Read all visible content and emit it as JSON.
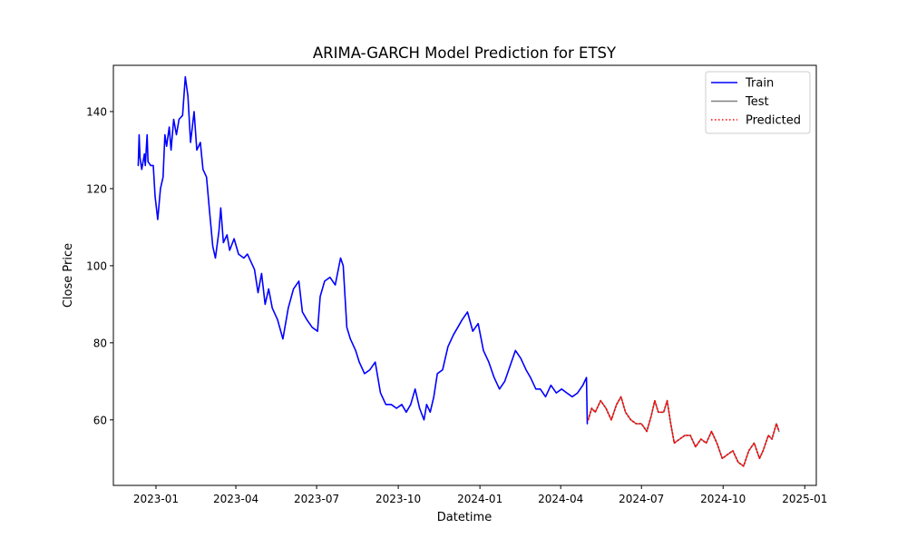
{
  "chart_data": {
    "type": "line",
    "title": "ARIMA-GARCH Model Prediction for ETSY",
    "xlabel": "Datetime",
    "ylabel": "Close Price",
    "x_ticks": [
      "2023-01",
      "2023-04",
      "2023-07",
      "2023-10",
      "2024-01",
      "2024-04",
      "2024-07",
      "2024-10",
      "2025-01"
    ],
    "y_ticks": [
      60,
      80,
      100,
      120,
      140
    ],
    "xlim": [
      "2022-11-14",
      "2025-01-14"
    ],
    "ylim": [
      43,
      152
    ],
    "grid": false,
    "legend_position": "top-right",
    "series": [
      {
        "name": "Train",
        "color": "#0000ff",
        "style": "solid",
        "points": [
          [
            "2022-12-12",
            126
          ],
          [
            "2022-12-13",
            134
          ],
          [
            "2022-12-14",
            128
          ],
          [
            "2022-12-16",
            125
          ],
          [
            "2022-12-19",
            129
          ],
          [
            "2022-12-20",
            126
          ],
          [
            "2022-12-22",
            134
          ],
          [
            "2022-12-23",
            127
          ],
          [
            "2022-12-26",
            126
          ],
          [
            "2022-12-29",
            126
          ],
          [
            "2022-12-31",
            118
          ],
          [
            "2023-01-03",
            112
          ],
          [
            "2023-01-06",
            120
          ],
          [
            "2023-01-09",
            123
          ],
          [
            "2023-01-11",
            134
          ],
          [
            "2023-01-13",
            131
          ],
          [
            "2023-01-16",
            136
          ],
          [
            "2023-01-18",
            130
          ],
          [
            "2023-01-21",
            138
          ],
          [
            "2023-01-24",
            134
          ],
          [
            "2023-01-27",
            138
          ],
          [
            "2023-01-31",
            139
          ],
          [
            "2023-02-03",
            149
          ],
          [
            "2023-02-06",
            144
          ],
          [
            "2023-02-09",
            132
          ],
          [
            "2023-02-13",
            140
          ],
          [
            "2023-02-16",
            130
          ],
          [
            "2023-02-20",
            132
          ],
          [
            "2023-02-23",
            125
          ],
          [
            "2023-02-27",
            123
          ],
          [
            "2023-03-02",
            115
          ],
          [
            "2023-03-06",
            105
          ],
          [
            "2023-03-09",
            102
          ],
          [
            "2023-03-13",
            109
          ],
          [
            "2023-03-15",
            115
          ],
          [
            "2023-03-18",
            106
          ],
          [
            "2023-03-22",
            108
          ],
          [
            "2023-03-25",
            104
          ],
          [
            "2023-03-30",
            107
          ],
          [
            "2023-04-04",
            103
          ],
          [
            "2023-04-10",
            102
          ],
          [
            "2023-04-14",
            103
          ],
          [
            "2023-04-18",
            101
          ],
          [
            "2023-04-22",
            99
          ],
          [
            "2023-04-26",
            93
          ],
          [
            "2023-04-30",
            98
          ],
          [
            "2023-05-04",
            90
          ],
          [
            "2023-05-08",
            94
          ],
          [
            "2023-05-12",
            89
          ],
          [
            "2023-05-18",
            86
          ],
          [
            "2023-05-24",
            81
          ],
          [
            "2023-05-30",
            89
          ],
          [
            "2023-06-05",
            94
          ],
          [
            "2023-06-11",
            96
          ],
          [
            "2023-06-15",
            88
          ],
          [
            "2023-06-20",
            86
          ],
          [
            "2023-06-26",
            84
          ],
          [
            "2023-07-02",
            83
          ],
          [
            "2023-07-05",
            92
          ],
          [
            "2023-07-10",
            96
          ],
          [
            "2023-07-16",
            97
          ],
          [
            "2023-07-22",
            95
          ],
          [
            "2023-07-28",
            102
          ],
          [
            "2023-07-31",
            100
          ],
          [
            "2023-08-04",
            84
          ],
          [
            "2023-08-08",
            81
          ],
          [
            "2023-08-14",
            78
          ],
          [
            "2023-08-18",
            75
          ],
          [
            "2023-08-24",
            72
          ],
          [
            "2023-08-30",
            73
          ],
          [
            "2023-09-05",
            75
          ],
          [
            "2023-09-11",
            67
          ],
          [
            "2023-09-17",
            64
          ],
          [
            "2023-09-23",
            64
          ],
          [
            "2023-09-29",
            63
          ],
          [
            "2023-10-05",
            64
          ],
          [
            "2023-10-10",
            62
          ],
          [
            "2023-10-15",
            64
          ],
          [
            "2023-10-20",
            68
          ],
          [
            "2023-10-25",
            63
          ],
          [
            "2023-10-30",
            60
          ],
          [
            "2023-11-02",
            64
          ],
          [
            "2023-11-06",
            62
          ],
          [
            "2023-11-10",
            66
          ],
          [
            "2023-11-14",
            72
          ],
          [
            "2023-11-20",
            73
          ],
          [
            "2023-11-26",
            79
          ],
          [
            "2023-12-02",
            82
          ],
          [
            "2023-12-07",
            84
          ],
          [
            "2023-12-12",
            86
          ],
          [
            "2023-12-18",
            88
          ],
          [
            "2023-12-24",
            83
          ],
          [
            "2023-12-30",
            85
          ],
          [
            "2024-01-05",
            78
          ],
          [
            "2024-01-11",
            75
          ],
          [
            "2024-01-17",
            71
          ],
          [
            "2024-01-23",
            68
          ],
          [
            "2024-01-29",
            70
          ],
          [
            "2024-02-04",
            74
          ],
          [
            "2024-02-10",
            78
          ],
          [
            "2024-02-16",
            76
          ],
          [
            "2024-02-22",
            73
          ],
          [
            "2024-02-27",
            71
          ],
          [
            "2024-03-04",
            68
          ],
          [
            "2024-03-09",
            68
          ],
          [
            "2024-03-15",
            66
          ],
          [
            "2024-03-21",
            69
          ],
          [
            "2024-03-27",
            67
          ],
          [
            "2024-04-02",
            68
          ],
          [
            "2024-04-08",
            67
          ],
          [
            "2024-04-14",
            66
          ],
          [
            "2024-04-20",
            67
          ],
          [
            "2024-04-26",
            69
          ],
          [
            "2024-04-30",
            71
          ],
          [
            "2024-05-01",
            59
          ]
        ]
      },
      {
        "name": "Test",
        "color": "#808080",
        "style": "solid",
        "points": [
          [
            "2024-05-02",
            60
          ],
          [
            "2024-05-06",
            63
          ],
          [
            "2024-05-10",
            62
          ],
          [
            "2024-05-16",
            65
          ],
          [
            "2024-05-22",
            63
          ],
          [
            "2024-05-28",
            60
          ],
          [
            "2024-06-03",
            64
          ],
          [
            "2024-06-08",
            66
          ],
          [
            "2024-06-13",
            62
          ],
          [
            "2024-06-19",
            60
          ],
          [
            "2024-06-25",
            59
          ],
          [
            "2024-07-01",
            59
          ],
          [
            "2024-07-07",
            57
          ],
          [
            "2024-07-12",
            61
          ],
          [
            "2024-07-16",
            65
          ],
          [
            "2024-07-20",
            62
          ],
          [
            "2024-07-26",
            62
          ],
          [
            "2024-07-30",
            65
          ],
          [
            "2024-08-03",
            59
          ],
          [
            "2024-08-07",
            54
          ],
          [
            "2024-08-13",
            55
          ],
          [
            "2024-08-19",
            56
          ],
          [
            "2024-08-25",
            56
          ],
          [
            "2024-08-31",
            53
          ],
          [
            "2024-09-06",
            55
          ],
          [
            "2024-09-12",
            54
          ],
          [
            "2024-09-18",
            57
          ],
          [
            "2024-09-24",
            54
          ],
          [
            "2024-09-30",
            50
          ],
          [
            "2024-10-06",
            51
          ],
          [
            "2024-10-12",
            52
          ],
          [
            "2024-10-18",
            49
          ],
          [
            "2024-10-24",
            48
          ],
          [
            "2024-10-30",
            52
          ],
          [
            "2024-11-05",
            54
          ],
          [
            "2024-11-11",
            50
          ],
          [
            "2024-11-15",
            52
          ],
          [
            "2024-11-21",
            56
          ],
          [
            "2024-11-25",
            55
          ],
          [
            "2024-11-30",
            59
          ],
          [
            "2024-12-03",
            57
          ]
        ]
      },
      {
        "name": "Predicted",
        "color": "#ff0000",
        "style": "dotted",
        "points": [
          [
            "2024-05-02",
            60
          ],
          [
            "2024-05-06",
            63
          ],
          [
            "2024-05-10",
            62
          ],
          [
            "2024-05-16",
            65
          ],
          [
            "2024-05-22",
            63
          ],
          [
            "2024-05-28",
            60
          ],
          [
            "2024-06-03",
            64
          ],
          [
            "2024-06-08",
            66
          ],
          [
            "2024-06-13",
            62
          ],
          [
            "2024-06-19",
            60
          ],
          [
            "2024-06-25",
            59
          ],
          [
            "2024-07-01",
            59
          ],
          [
            "2024-07-07",
            57
          ],
          [
            "2024-07-12",
            61
          ],
          [
            "2024-07-16",
            65
          ],
          [
            "2024-07-20",
            62
          ],
          [
            "2024-07-26",
            62
          ],
          [
            "2024-07-30",
            65
          ],
          [
            "2024-08-03",
            59
          ],
          [
            "2024-08-07",
            54
          ],
          [
            "2024-08-13",
            55
          ],
          [
            "2024-08-19",
            56
          ],
          [
            "2024-08-25",
            56
          ],
          [
            "2024-08-31",
            53
          ],
          [
            "2024-09-06",
            55
          ],
          [
            "2024-09-12",
            54
          ],
          [
            "2024-09-18",
            57
          ],
          [
            "2024-09-24",
            54
          ],
          [
            "2024-09-30",
            50
          ],
          [
            "2024-10-06",
            51
          ],
          [
            "2024-10-12",
            52
          ],
          [
            "2024-10-18",
            49
          ],
          [
            "2024-10-24",
            48
          ],
          [
            "2024-10-30",
            52
          ],
          [
            "2024-11-05",
            54
          ],
          [
            "2024-11-11",
            50
          ],
          [
            "2024-11-15",
            52
          ],
          [
            "2024-11-21",
            56
          ],
          [
            "2024-11-25",
            55
          ],
          [
            "2024-11-30",
            59
          ],
          [
            "2024-12-03",
            57
          ]
        ]
      }
    ]
  }
}
